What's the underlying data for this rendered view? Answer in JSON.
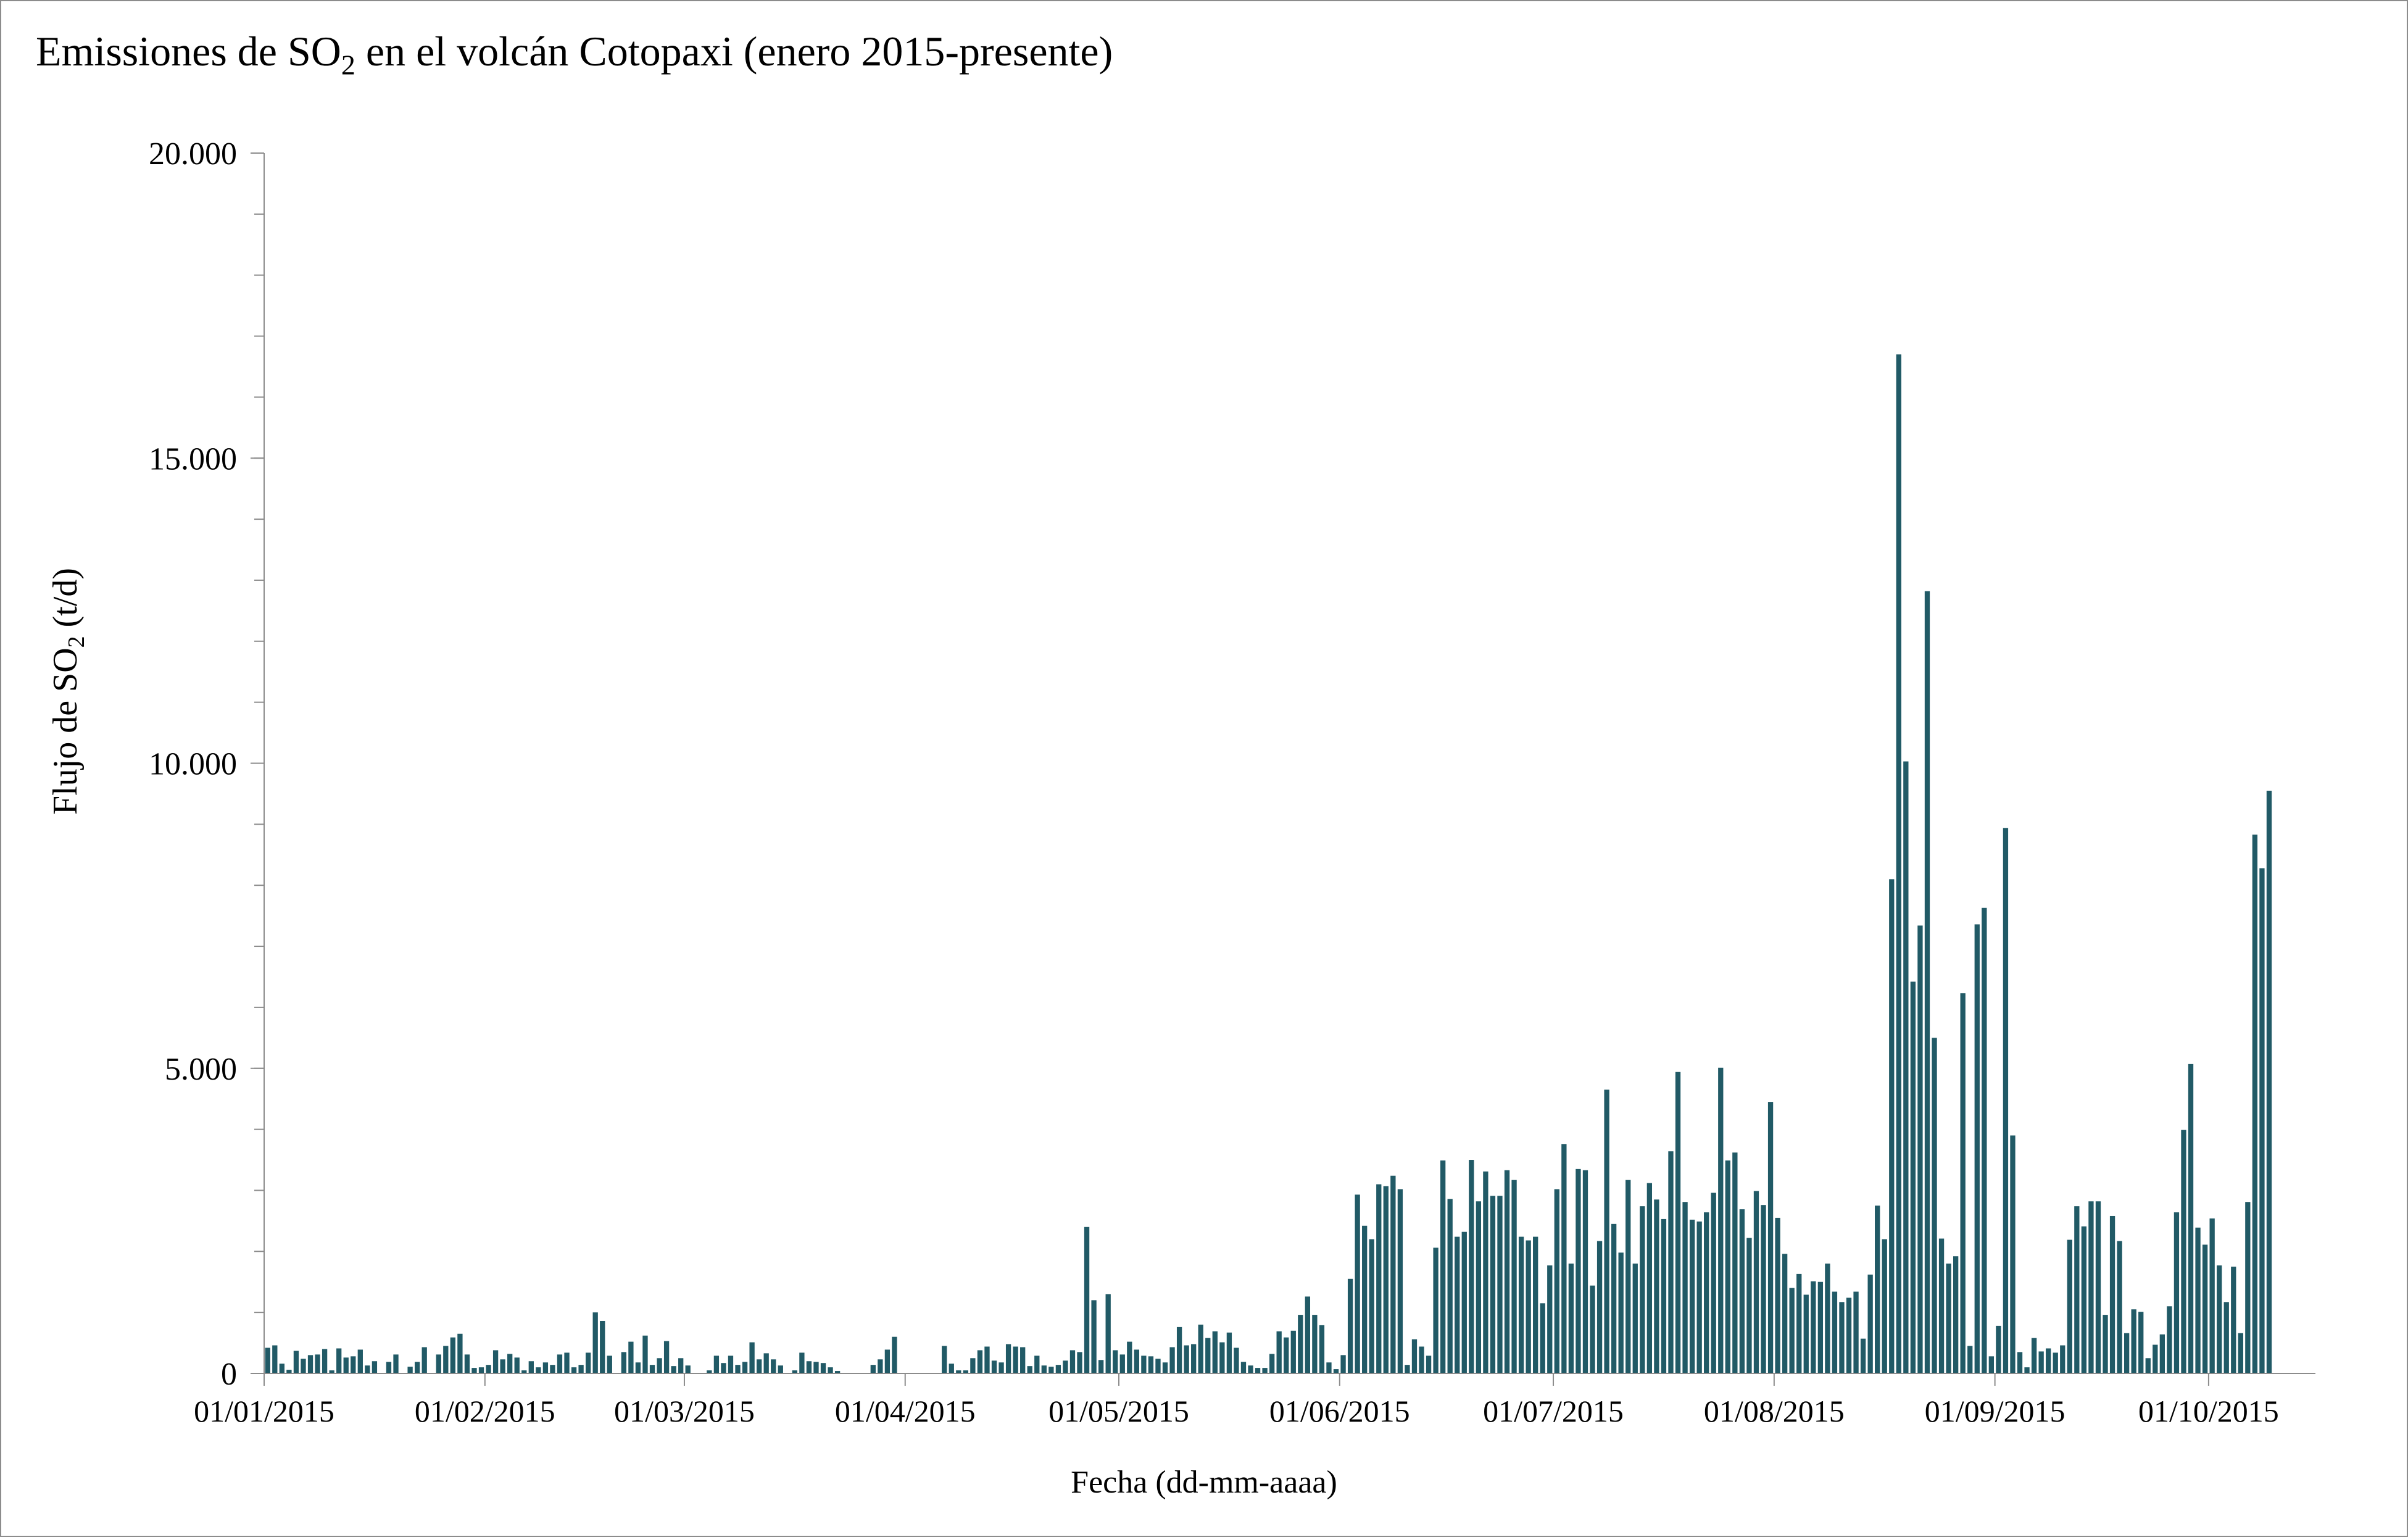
{
  "chart_data": {
    "type": "bar",
    "title": {
      "prefix": "Emissiones de SO",
      "subscript": "2",
      "suffix": " en el volcán Cotopaxi (enero 2015-presente)"
    },
    "xlabel": "Fecha (dd-mm-aaaa)",
    "ylabel": {
      "prefix": "Flujo de SO",
      "subscript": "2",
      "suffix": " (t/d)"
    },
    "ylim": [
      0,
      20000
    ],
    "yticks": [
      0,
      5000,
      10000,
      15000,
      20000
    ],
    "ytick_labels": [
      "0",
      "5.000",
      "10.000",
      "15.000",
      "20.000"
    ],
    "y_minor_step": 1000,
    "x_range_days": [
      0,
      288
    ],
    "xticks_day": [
      0,
      31,
      59,
      90,
      120,
      151,
      181,
      212,
      243,
      273
    ],
    "xtick_labels": [
      "01/01/2015",
      "01/02/2015",
      "01/03/2015",
      "01/04/2015",
      "01/05/2015",
      "01/06/2015",
      "01/07/2015",
      "01/08/2015",
      "01/09/2015",
      "01/10/2015"
    ],
    "bar_color": "#215a66",
    "grid": false,
    "legend": "none",
    "series": [
      {
        "values": [
          420,
          460,
          160,
          60,
          370,
          240,
          300,
          310,
          400,
          50,
          410,
          260,
          280,
          390,
          130,
          200,
          0,
          190,
          310,
          0,
          110,
          190,
          430,
          0,
          310,
          450,
          590,
          650,
          310,
          90,
          100,
          140,
          380,
          230,
          320,
          260,
          50,
          200,
          100,
          180,
          140,
          310,
          340,
          100,
          140,
          340,
          1000,
          860,
          290,
          0,
          350,
          520,
          180,
          620,
          140,
          250,
          530,
          120,
          250,
          130,
          0,
          0,
          50,
          290,
          170,
          290,
          140,
          190,
          510,
          230,
          330,
          230,
          130,
          0,
          50,
          340,
          200,
          190,
          170,
          100,
          40,
          0,
          0,
          0,
          0,
          140,
          230,
          390,
          600,
          0,
          0,
          0,
          0,
          0,
          0,
          450,
          160,
          50,
          50,
          250,
          380,
          440,
          210,
          180,
          480,
          440,
          430,
          120,
          290,
          130,
          110,
          140,
          210,
          380,
          350,
          2400,
          1200,
          220,
          1300,
          380,
          310,
          520,
          390,
          290,
          280,
          240,
          180,
          430,
          760,
          460,
          480,
          800,
          580,
          690,
          510,
          670,
          420,
          190,
          130,
          90,
          90,
          320,
          690,
          590,
          700,
          960,
          1260,
          960,
          790,
          180,
          70,
          300,
          1550,
          2930,
          2420,
          2200,
          3100,
          3070,
          3240,
          3020,
          140,
          560,
          440,
          290,
          2060,
          3490,
          2860,
          2240,
          2320,
          3500,
          2820,
          3310,
          2910,
          2910,
          3330,
          3170,
          2240,
          2180,
          2240,
          1150,
          1770,
          3020,
          3760,
          1800,
          3350,
          3330,
          1440,
          2170,
          4650,
          2450,
          1980,
          3170,
          1800,
          2740,
          3120,
          2850,
          2530,
          3640,
          4940,
          2810,
          2520,
          2490,
          2640,
          2960,
          5010,
          3490,
          3620,
          2690,
          2220,
          2990,
          2760,
          4450,
          2550,
          1960,
          1400,
          1630,
          1290,
          1510,
          1500,
          1800,
          1340,
          1170,
          1240,
          1340,
          570,
          1620,
          2750,
          2200,
          8100,
          16700,
          10030,
          6420,
          7340,
          12820,
          5500,
          2210,
          1800,
          1920,
          6230,
          450,
          7360,
          7630,
          280,
          780,
          8940,
          3900,
          350,
          100,
          580,
          360,
          410,
          340,
          460,
          2190,
          2740,
          2410,
          2820,
          2820,
          960,
          2580,
          2170,
          660,
          1050,
          1010,
          250,
          470,
          640,
          1100,
          2640,
          3990,
          5070,
          2390,
          2110,
          2540,
          1770,
          1170,
          1750,
          660,
          2810,
          8830,
          8280,
          9550
        ]
      }
    ]
  }
}
